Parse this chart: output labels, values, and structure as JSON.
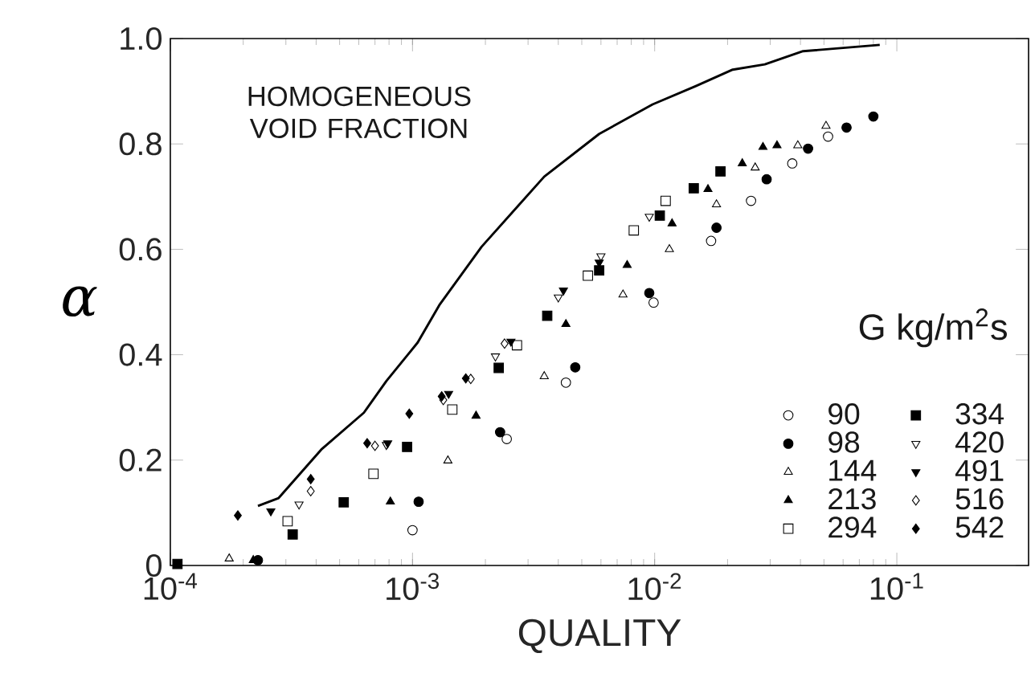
{
  "chart_data": {
    "type": "scatter",
    "xlabel": "QUALITY",
    "ylabel": "α",
    "legend_title": "G  kg/m$^{2}$s",
    "log": "x",
    "legend": "bottom right",
    "xlim": [
      0.0001,
      0.35
    ],
    "ylim": [
      0,
      1
    ],
    "xticks": [
      {
        "value": 0.0001,
        "label": "10$^{-4}$"
      },
      {
        "value": 0.001,
        "label": "10$^{-3}$"
      },
      {
        "value": 0.01,
        "label": "10$^{-2}$"
      },
      {
        "value": 0.1,
        "label": "10$^{-1}$"
      }
    ],
    "yticks": [
      0,
      0.2,
      0.4,
      0.6,
      0.8,
      {
        "value": 1,
        "label": "1.0"
      }
    ],
    "series": [
      {
        "name": "HOMOGENEOUS VOID FRACTION",
        "type": "line",
        "marker": "none",
        "line_style": "solid",
        "color": "#000000",
        "x": [
          0.00023,
          0.00028,
          0.00042,
          0.00063,
          0.00078,
          0.00105,
          0.00129,
          0.00193,
          0.0035,
          0.0059,
          0.0098,
          0.0148,
          0.021,
          0.0285,
          0.041,
          0.085
        ],
        "values": [
          0.113,
          0.128,
          0.22,
          0.29,
          0.35,
          0.423,
          0.494,
          0.605,
          0.738,
          0.819,
          0.875,
          0.91,
          0.941,
          0.951,
          0.976,
          0.988
        ]
      },
      {
        "name": "90",
        "marker": "circle-open",
        "color": "#000000",
        "x": [
          0.001,
          0.00245,
          0.0043,
          0.0099,
          0.0171,
          0.025,
          0.037,
          0.052
        ],
        "values": [
          0.067,
          0.24,
          0.347,
          0.499,
          0.616,
          0.692,
          0.763,
          0.814
        ]
      },
      {
        "name": "98",
        "marker": "circle",
        "color": "#000000",
        "x": [
          0.00023,
          0.00106,
          0.0023,
          0.0047,
          0.0095,
          0.018,
          0.029,
          0.043,
          0.062,
          0.08
        ],
        "values": [
          0.01,
          0.121,
          0.253,
          0.376,
          0.517,
          0.641,
          0.733,
          0.791,
          0.831,
          0.852
        ]
      },
      {
        "name": "144",
        "marker": "triangle-open",
        "color": "#000000",
        "x": [
          0.000175,
          0.0014,
          0.0035,
          0.0074,
          0.0115,
          0.018,
          0.026,
          0.039,
          0.051
        ],
        "values": [
          0.013,
          0.199,
          0.359,
          0.514,
          0.6,
          0.685,
          0.755,
          0.797,
          0.834
        ]
      },
      {
        "name": "213",
        "marker": "triangle",
        "color": "#000000",
        "x": [
          0.00022,
          0.00081,
          0.00183,
          0.0043,
          0.0077,
          0.0118,
          0.0166,
          0.023,
          0.028,
          0.032
        ],
        "values": [
          0.01,
          0.121,
          0.284,
          0.458,
          0.57,
          0.649,
          0.714,
          0.763,
          0.794,
          0.797
        ]
      },
      {
        "name": "294",
        "marker": "square-open",
        "color": "#000000",
        "x": [
          0.000305,
          0.00069,
          0.00146,
          0.0027,
          0.0053,
          0.0082,
          0.0111
        ],
        "values": [
          0.084,
          0.174,
          0.296,
          0.418,
          0.55,
          0.636,
          0.692
        ]
      },
      {
        "name": "334",
        "marker": "square",
        "color": "#000000",
        "x": [
          0.000107,
          0.00032,
          0.00052,
          0.00095,
          0.00227,
          0.0036,
          0.0059,
          0.0105,
          0.0145,
          0.0187
        ],
        "values": [
          0.003,
          0.059,
          0.12,
          0.225,
          0.375,
          0.474,
          0.56,
          0.664,
          0.716,
          0.748
        ]
      },
      {
        "name": "420",
        "marker": "triangle-down-open",
        "color": "#000000",
        "x": [
          0.00034,
          0.00078,
          0.0022,
          0.004,
          0.006,
          0.0095
        ],
        "values": [
          0.116,
          0.229,
          0.397,
          0.509,
          0.587,
          0.662
        ]
      },
      {
        "name": "491",
        "marker": "triangle-down",
        "color": "#000000",
        "x": [
          0.00026,
          0.00079,
          0.00141,
          0.00255,
          0.0042,
          0.0059
        ],
        "values": [
          0.103,
          0.232,
          0.326,
          0.425,
          0.522,
          0.575
        ]
      },
      {
        "name": "516",
        "marker": "diamond-open",
        "color": "#000000",
        "x": [
          0.00038,
          0.0007,
          0.00134,
          0.00174,
          0.0024
        ],
        "values": [
          0.141,
          0.227,
          0.314,
          0.354,
          0.421
        ]
      },
      {
        "name": "542",
        "marker": "diamond",
        "color": "#000000",
        "x": [
          0.00019,
          0.00038,
          0.00065,
          0.00097,
          0.00132,
          0.00166
        ],
        "values": [
          0.095,
          0.164,
          0.232,
          0.288,
          0.321,
          0.355
        ]
      }
    ]
  }
}
